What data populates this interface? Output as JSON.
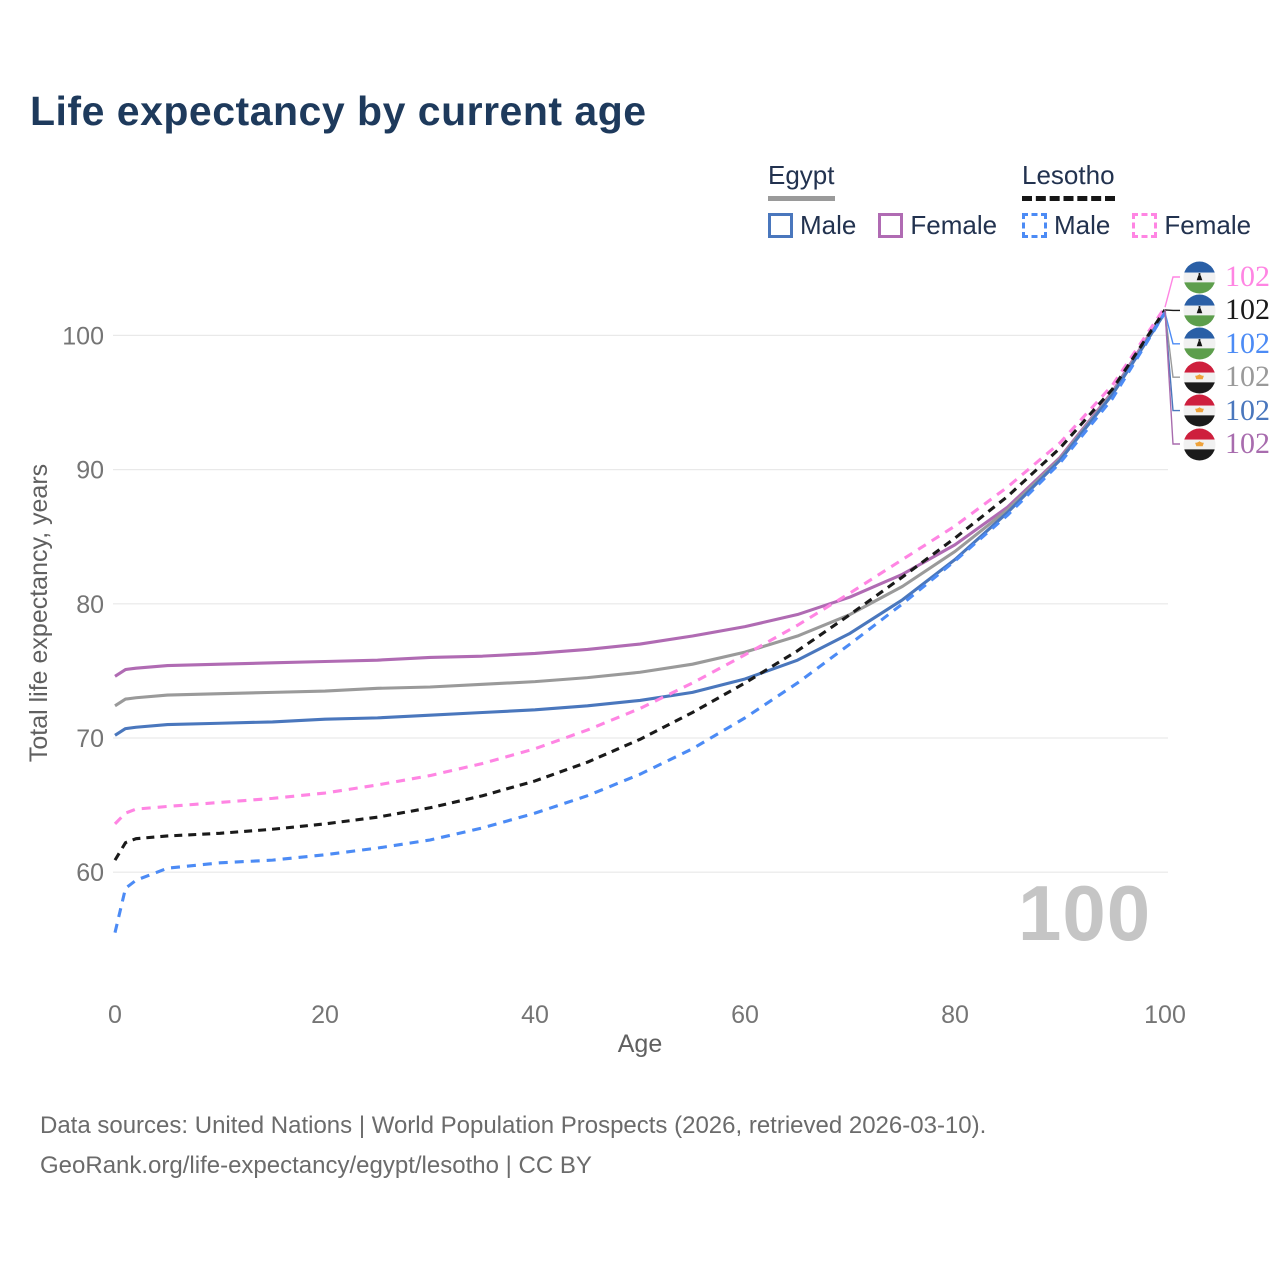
{
  "title": "Life expectancy by current age",
  "legend": {
    "groups": [
      {
        "title": "Egypt",
        "line_style": "solid",
        "underline_color": "#9a9a9a",
        "items": [
          {
            "label": "Male",
            "color": "#4a77bd"
          },
          {
            "label": "Female",
            "color": "#b06bb3"
          }
        ]
      },
      {
        "title": "Lesotho",
        "line_style": "dashed",
        "underline_color": "#161616",
        "items": [
          {
            "label": "Male",
            "color": "#4c8bf5"
          },
          {
            "label": "Female",
            "color": "#ff85e3"
          }
        ]
      }
    ]
  },
  "chart_data": {
    "type": "line",
    "title": "Life expectancy by current age",
    "xlabel": "Age",
    "ylabel": "Total life expectancy, years",
    "xlim": [
      0,
      100
    ],
    "ylim": [
      55,
      103
    ],
    "xticks": [
      0,
      20,
      40,
      60,
      80,
      100
    ],
    "yticks": [
      60,
      70,
      80,
      90,
      100
    ],
    "grid": "horizontal-only",
    "legend_position": "top-right",
    "x": [
      0,
      1,
      2,
      5,
      10,
      15,
      20,
      25,
      30,
      35,
      40,
      45,
      50,
      55,
      60,
      65,
      70,
      75,
      80,
      85,
      90,
      95,
      100
    ],
    "series": [
      {
        "name": "Egypt Female",
        "country": "Egypt",
        "sex": "Female",
        "color": "#b06bb3",
        "dash": "solid",
        "values": [
          74.6,
          75.1,
          75.2,
          75.4,
          75.5,
          75.6,
          75.7,
          75.8,
          76.0,
          76.1,
          76.3,
          76.6,
          77.0,
          77.6,
          78.3,
          79.2,
          80.5,
          82.2,
          84.4,
          87.2,
          90.9,
          95.8,
          101.9
        ]
      },
      {
        "name": "Egypt Both sexes",
        "country": "Egypt",
        "sex": "Both",
        "color": "#9a9a9a",
        "dash": "solid",
        "values": [
          72.4,
          72.9,
          73.0,
          73.2,
          73.3,
          73.4,
          73.5,
          73.7,
          73.8,
          74.0,
          74.2,
          74.5,
          74.9,
          75.5,
          76.4,
          77.6,
          79.2,
          81.3,
          83.9,
          87.0,
          90.8,
          95.7,
          101.8
        ]
      },
      {
        "name": "Egypt Male",
        "country": "Egypt",
        "sex": "Male",
        "color": "#4a77bd",
        "dash": "solid",
        "values": [
          70.2,
          70.7,
          70.8,
          71.0,
          71.1,
          71.2,
          71.4,
          71.5,
          71.7,
          71.9,
          72.1,
          72.4,
          72.8,
          73.4,
          74.4,
          75.8,
          77.8,
          80.3,
          83.3,
          86.8,
          90.7,
          95.6,
          101.7
        ]
      },
      {
        "name": "Lesotho Female",
        "country": "Lesotho",
        "sex": "Female",
        "color": "#ff85e3",
        "dash": "dashed",
        "values": [
          63.6,
          64.4,
          64.7,
          64.9,
          65.2,
          65.5,
          65.9,
          66.5,
          67.2,
          68.1,
          69.2,
          70.6,
          72.2,
          74.1,
          76.2,
          78.4,
          80.8,
          83.3,
          85.8,
          88.7,
          92.0,
          96.3,
          102.1
        ]
      },
      {
        "name": "Lesotho Both sexes",
        "country": "Lesotho",
        "sex": "Both",
        "color": "#1a1a1a",
        "dash": "dashed",
        "values": [
          60.9,
          62.2,
          62.5,
          62.7,
          62.9,
          63.2,
          63.6,
          64.1,
          64.8,
          65.7,
          66.8,
          68.2,
          69.9,
          71.9,
          74.1,
          76.5,
          79.2,
          82.0,
          84.9,
          88.0,
          91.6,
          96.0,
          101.9
        ]
      },
      {
        "name": "Lesotho Male",
        "country": "Lesotho",
        "sex": "Male",
        "color": "#4c8bf5",
        "dash": "dashed",
        "values": [
          55.5,
          58.8,
          59.4,
          60.3,
          60.7,
          60.9,
          61.3,
          61.8,
          62.4,
          63.3,
          64.4,
          65.7,
          67.3,
          69.2,
          71.5,
          74.1,
          77.0,
          80.0,
          83.2,
          86.6,
          90.5,
          95.3,
          101.7
        ]
      }
    ]
  },
  "end_labels": [
    {
      "country": "Lesotho",
      "series": "Lesotho Female",
      "value": "102",
      "color": "#ff85e3",
      "icon": "lesotho-flag-icon"
    },
    {
      "country": "Lesotho",
      "series": "Lesotho Both sexes",
      "value": "102",
      "color": "#1a1a1a",
      "icon": "lesotho-flag-icon"
    },
    {
      "country": "Lesotho",
      "series": "Lesotho Male",
      "value": "102",
      "color": "#4c8bf5",
      "icon": "lesotho-flag-icon"
    },
    {
      "country": "Egypt",
      "series": "Egypt Both sexes",
      "value": "102",
      "color": "#9a9a9a",
      "icon": "egypt-flag-icon"
    },
    {
      "country": "Egypt",
      "series": "Egypt Male",
      "value": "102",
      "color": "#4a77bd",
      "icon": "egypt-flag-icon"
    },
    {
      "country": "Egypt",
      "series": "Egypt Female",
      "value": "102",
      "color": "#a86cae",
      "icon": "egypt-flag-icon"
    }
  ],
  "watermark": "100",
  "footer": {
    "line1": "Data sources: United Nations | World Population Prospects (2026, retrieved 2026-03-10).",
    "line2": "GeoRank.org/life-expectancy/egypt/lesotho | CC BY"
  },
  "colors": {
    "title_text": "#1e3a5c",
    "legend_text": "#22324f",
    "axis_text": "#757575",
    "gridline": "#e9e9e9",
    "watermark": "#c5c5c5",
    "footer_text": "#6b6b6b"
  }
}
